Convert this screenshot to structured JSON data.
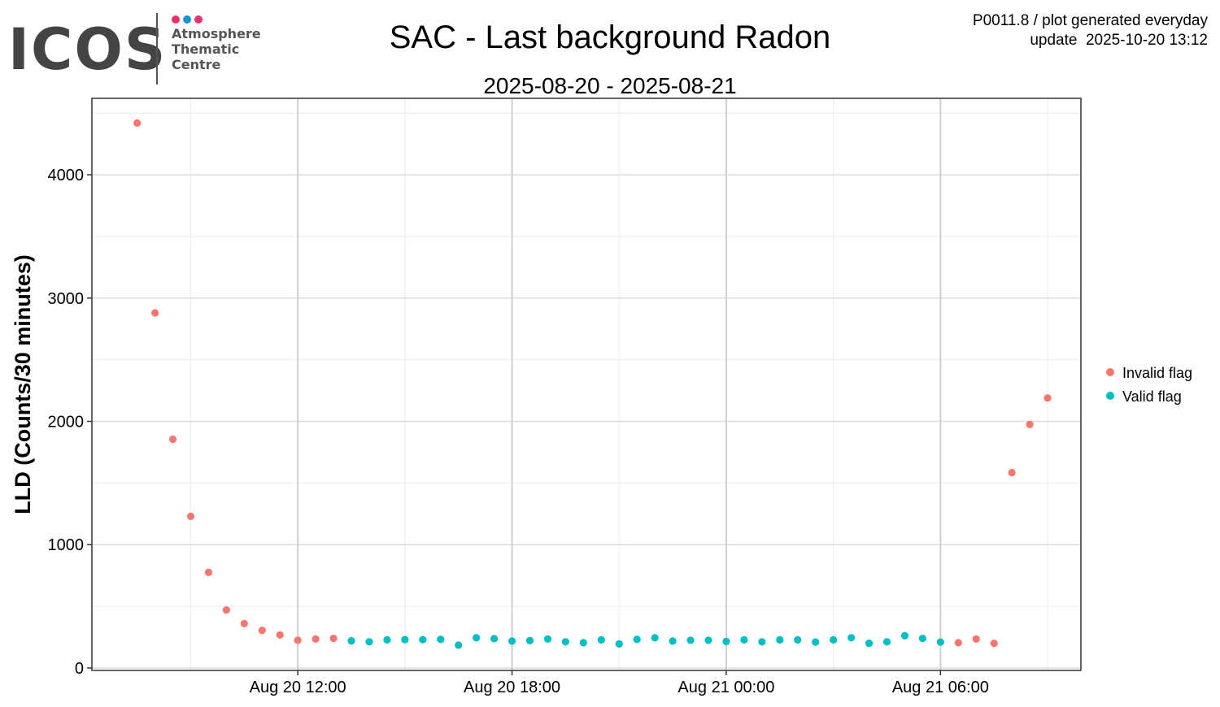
{
  "logo": {
    "word": "ICOS",
    "lines": [
      "Atmosphere",
      "Thematic",
      "Centre"
    ],
    "dot_colors": [
      "#e8336e",
      "#1793d1",
      "#e8336e"
    ]
  },
  "header": {
    "title": "SAC - Last background Radon",
    "subtitle": "2025-08-20 - 2025-08-21",
    "info_line1": "P0011.8 / plot generated everyday",
    "info_line2": "update  2025-10-20 13:12"
  },
  "chart_data": {
    "type": "scatter",
    "ylabel": "LLD (Counts/30 minutes)",
    "xlabel": "",
    "x_axis": "time",
    "xlim": [
      "2025-08-20 06:14",
      "2025-08-21 09:56"
    ],
    "ylim": [
      -20,
      4620
    ],
    "x_ticks": [
      {
        "t": "2025-08-20 12:00",
        "label": "Aug 20 12:00"
      },
      {
        "t": "2025-08-20 18:00",
        "label": "Aug 20 18:00"
      },
      {
        "t": "2025-08-21 00:00",
        "label": "Aug 21 00:00"
      },
      {
        "t": "2025-08-21 06:00",
        "label": "Aug 21 06:00"
      }
    ],
    "y_ticks": [
      0,
      1000,
      2000,
      3000,
      4000
    ],
    "grid": true,
    "legend_position": "right",
    "series": [
      {
        "name": "Invalid flag",
        "color": "#f8766d",
        "points": [
          {
            "t": "2025-08-20 07:30",
            "y": 4420
          },
          {
            "t": "2025-08-20 08:00",
            "y": 2880
          },
          {
            "t": "2025-08-20 08:30",
            "y": 1855
          },
          {
            "t": "2025-08-20 09:00",
            "y": 1230
          },
          {
            "t": "2025-08-20 09:30",
            "y": 775
          },
          {
            "t": "2025-08-20 10:00",
            "y": 470
          },
          {
            "t": "2025-08-20 10:30",
            "y": 360
          },
          {
            "t": "2025-08-20 11:00",
            "y": 305
          },
          {
            "t": "2025-08-20 11:30",
            "y": 268
          },
          {
            "t": "2025-08-20 12:00",
            "y": 225
          },
          {
            "t": "2025-08-20 12:30",
            "y": 235
          },
          {
            "t": "2025-08-20 13:00",
            "y": 240
          },
          {
            "t": "2025-08-21 06:30",
            "y": 205
          },
          {
            "t": "2025-08-21 07:00",
            "y": 235
          },
          {
            "t": "2025-08-21 07:30",
            "y": 200
          },
          {
            "t": "2025-08-21 08:00",
            "y": 1585
          },
          {
            "t": "2025-08-21 08:30",
            "y": 1975
          },
          {
            "t": "2025-08-21 09:00",
            "y": 2190
          }
        ]
      },
      {
        "name": "Valid flag",
        "color": "#00bfc4",
        "points": [
          {
            "t": "2025-08-20 13:30",
            "y": 220
          },
          {
            "t": "2025-08-20 14:00",
            "y": 212
          },
          {
            "t": "2025-08-20 14:30",
            "y": 228
          },
          {
            "t": "2025-08-20 15:00",
            "y": 230
          },
          {
            "t": "2025-08-20 15:30",
            "y": 230
          },
          {
            "t": "2025-08-20 16:00",
            "y": 232
          },
          {
            "t": "2025-08-20 16:30",
            "y": 185
          },
          {
            "t": "2025-08-20 17:00",
            "y": 245
          },
          {
            "t": "2025-08-20 17:30",
            "y": 238
          },
          {
            "t": "2025-08-20 18:00",
            "y": 218
          },
          {
            "t": "2025-08-20 18:30",
            "y": 222
          },
          {
            "t": "2025-08-20 19:00",
            "y": 235
          },
          {
            "t": "2025-08-20 19:30",
            "y": 212
          },
          {
            "t": "2025-08-20 20:00",
            "y": 205
          },
          {
            "t": "2025-08-20 20:30",
            "y": 228
          },
          {
            "t": "2025-08-20 21:00",
            "y": 195
          },
          {
            "t": "2025-08-20 21:30",
            "y": 232
          },
          {
            "t": "2025-08-20 22:00",
            "y": 245
          },
          {
            "t": "2025-08-20 22:30",
            "y": 218
          },
          {
            "t": "2025-08-20 23:00",
            "y": 225
          },
          {
            "t": "2025-08-20 23:30",
            "y": 225
          },
          {
            "t": "2025-08-21 00:00",
            "y": 215
          },
          {
            "t": "2025-08-21 00:30",
            "y": 228
          },
          {
            "t": "2025-08-21 01:00",
            "y": 212
          },
          {
            "t": "2025-08-21 01:30",
            "y": 228
          },
          {
            "t": "2025-08-21 02:00",
            "y": 228
          },
          {
            "t": "2025-08-21 02:30",
            "y": 210
          },
          {
            "t": "2025-08-21 03:00",
            "y": 228
          },
          {
            "t": "2025-08-21 03:30",
            "y": 245
          },
          {
            "t": "2025-08-21 04:00",
            "y": 200
          },
          {
            "t": "2025-08-21 04:30",
            "y": 212
          },
          {
            "t": "2025-08-21 05:00",
            "y": 262
          },
          {
            "t": "2025-08-21 05:30",
            "y": 240
          },
          {
            "t": "2025-08-21 06:00",
            "y": 210
          }
        ]
      }
    ]
  }
}
